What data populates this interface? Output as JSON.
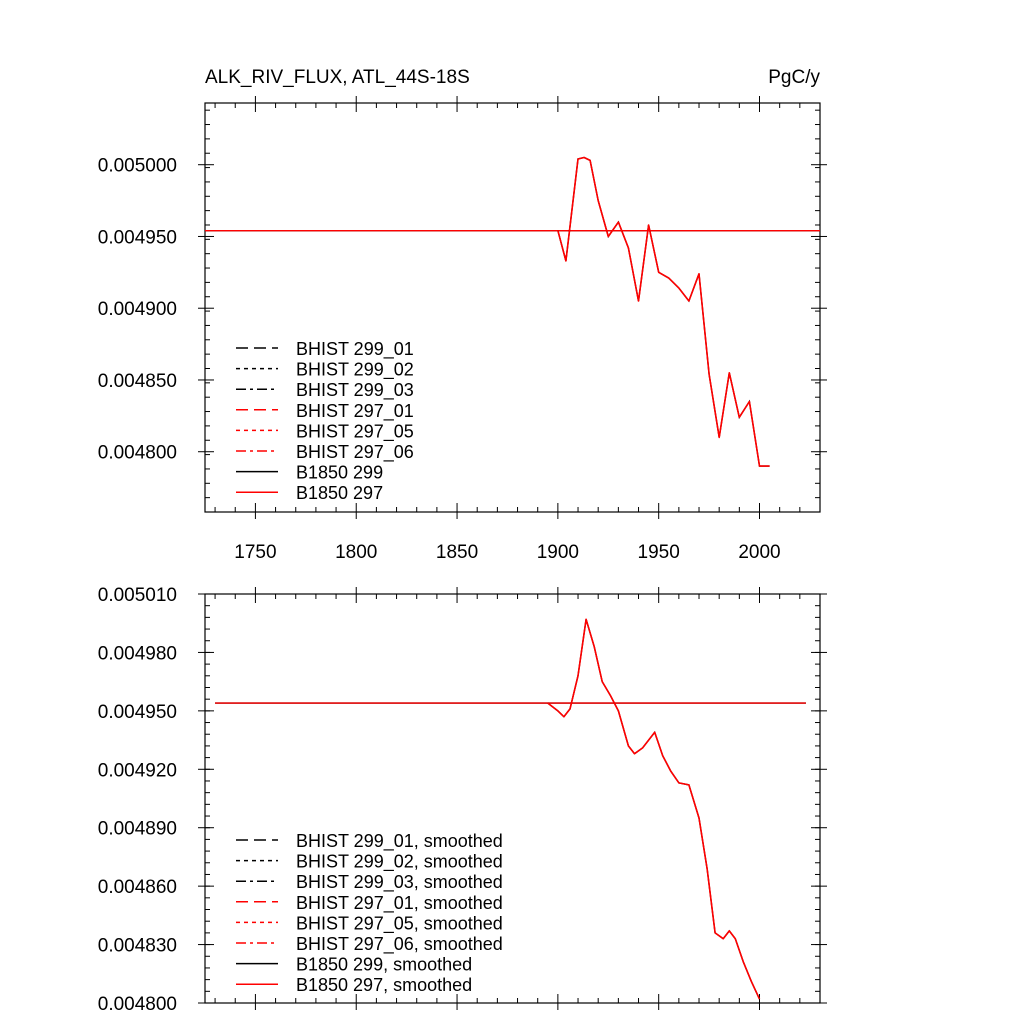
{
  "title": "ALK_RIV_FLUX, ATL_44S-18S",
  "units": "PgC/y",
  "colors": {
    "black": "#000000",
    "red": "#ff0000"
  },
  "chart_data": [
    {
      "type": "line",
      "panel": "raw",
      "xlim": [
        1725,
        2030
      ],
      "ylim": [
        0.004758,
        0.005043
      ],
      "x_ticks": [
        1750,
        1800,
        1850,
        1900,
        1950,
        2000
      ],
      "x_tick_labels": [
        "1750",
        "1800",
        "1850",
        "1900",
        "1950",
        "2000"
      ],
      "y_ticks": [
        0.0048,
        0.00485,
        0.0049,
        0.00495,
        0.005
      ],
      "y_tick_labels": [
        "0.004800",
        "0.004850",
        "0.004900",
        "0.004950",
        "0.005000"
      ],
      "legend": [
        {
          "label": "BHIST 299_01",
          "color": "#000000",
          "dash": "long-dash"
        },
        {
          "label": "BHIST 299_02",
          "color": "#000000",
          "dash": "dotted"
        },
        {
          "label": "BHIST 299_03",
          "color": "#000000",
          "dash": "dash-dot"
        },
        {
          "label": "BHIST 297_01",
          "color": "#ff0000",
          "dash": "long-dash"
        },
        {
          "label": "BHIST 297_05",
          "color": "#ff0000",
          "dash": "dotted"
        },
        {
          "label": "BHIST 297_06",
          "color": "#ff0000",
          "dash": "dash-dot"
        },
        {
          "label": "B1850 299",
          "color": "#000000",
          "dash": "solid"
        },
        {
          "label": "B1850 297",
          "color": "#ff0000",
          "dash": "solid"
        }
      ],
      "control": {
        "x": [
          1725,
          2030
        ],
        "y": [
          0.004954,
          0.004954
        ]
      },
      "historical": {
        "x": [
          1900,
          1904,
          1910,
          1913,
          1916,
          1920,
          1925,
          1930,
          1935,
          1940,
          1945,
          1950,
          1955,
          1960,
          1965,
          1970,
          1975,
          1980,
          1985,
          1990,
          1995,
          2000,
          2005
        ],
        "y": [
          0.004954,
          0.004933,
          0.005004,
          0.005005,
          0.005003,
          0.004975,
          0.00495,
          0.00496,
          0.004942,
          0.004905,
          0.004958,
          0.004925,
          0.004921,
          0.004914,
          0.004905,
          0.004924,
          0.004854,
          0.00481,
          0.004855,
          0.004824,
          0.004835,
          0.00479,
          0.00479
        ]
      }
    },
    {
      "type": "line",
      "panel": "smoothed",
      "xlim": [
        1725,
        2030
      ],
      "ylim": [
        0.0048,
        0.00501
      ],
      "x_ticks": [
        1750,
        1800,
        1850,
        1900,
        1950,
        2000
      ],
      "y_ticks": [
        0.0048,
        0.00483,
        0.00486,
        0.00489,
        0.00492,
        0.00495,
        0.00498,
        0.00501
      ],
      "y_tick_labels": [
        "0.004800",
        "0.004830",
        "0.004860",
        "0.004890",
        "0.004920",
        "0.004950",
        "0.004980",
        "0.005010"
      ],
      "legend": [
        {
          "label": "BHIST 299_01, smoothed",
          "color": "#000000",
          "dash": "long-dash"
        },
        {
          "label": "BHIST 299_02, smoothed",
          "color": "#000000",
          "dash": "dotted"
        },
        {
          "label": "BHIST 299_03, smoothed",
          "color": "#000000",
          "dash": "dash-dot"
        },
        {
          "label": "BHIST 297_01, smoothed",
          "color": "#ff0000",
          "dash": "long-dash"
        },
        {
          "label": "BHIST 297_05, smoothed",
          "color": "#ff0000",
          "dash": "dotted"
        },
        {
          "label": "BHIST 297_06, smoothed",
          "color": "#ff0000",
          "dash": "dash-dot"
        },
        {
          "label": "B1850 299, smoothed",
          "color": "#000000",
          "dash": "solid"
        },
        {
          "label": "B1850 297, smoothed",
          "color": "#ff0000",
          "dash": "solid"
        }
      ],
      "control": {
        "x": [
          1730,
          2023
        ],
        "y": [
          0.004954,
          0.004954
        ]
      },
      "historical": {
        "x": [
          1895,
          1900,
          1903,
          1906,
          1910,
          1914,
          1918,
          1922,
          1926,
          1930,
          1935,
          1938,
          1942,
          1948,
          1952,
          1956,
          1960,
          1965,
          1970,
          1974,
          1978,
          1982,
          1985,
          1988,
          1992,
          1996,
          2000
        ],
        "y": [
          0.004954,
          0.00495,
          0.004947,
          0.004951,
          0.004968,
          0.004997,
          0.004983,
          0.004965,
          0.004958,
          0.00495,
          0.004932,
          0.004928,
          0.004931,
          0.004939,
          0.004927,
          0.004919,
          0.004913,
          0.004912,
          0.004895,
          0.004869,
          0.004836,
          0.004833,
          0.004837,
          0.004833,
          0.004821,
          0.004811,
          0.004802
        ]
      }
    }
  ]
}
